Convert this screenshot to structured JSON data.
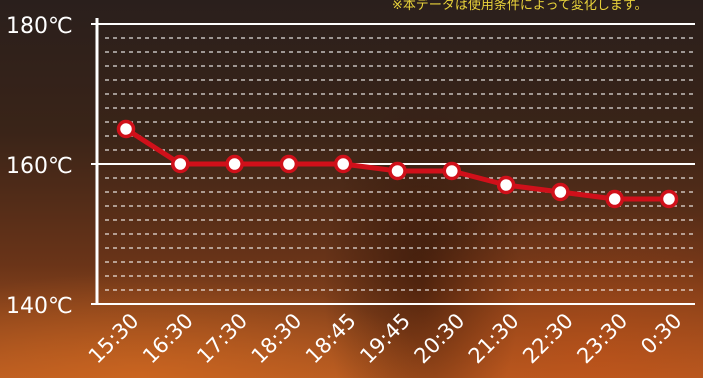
{
  "note": "※本データは使用条件によって変化します。",
  "colors": {
    "line": "#d0101a",
    "axis": "#ffffff",
    "note": "#e8d23a"
  },
  "chart_data": {
    "type": "line",
    "categories": [
      "15:30",
      "16:30",
      "17:30",
      "18:30",
      "18:45",
      "19:45",
      "20:30",
      "21:30",
      "22:30",
      "23:30",
      "0:30"
    ],
    "series": [
      {
        "values": [
          165,
          160,
          160,
          160,
          160,
          159,
          159,
          157,
          156,
          155,
          155
        ]
      }
    ],
    "ylim": [
      140,
      180
    ],
    "yticks": [
      140,
      160,
      180
    ],
    "ytick_labels": [
      "140℃",
      "160℃",
      "180℃"
    ],
    "minor_grid_step": 2,
    "grid": true
  }
}
